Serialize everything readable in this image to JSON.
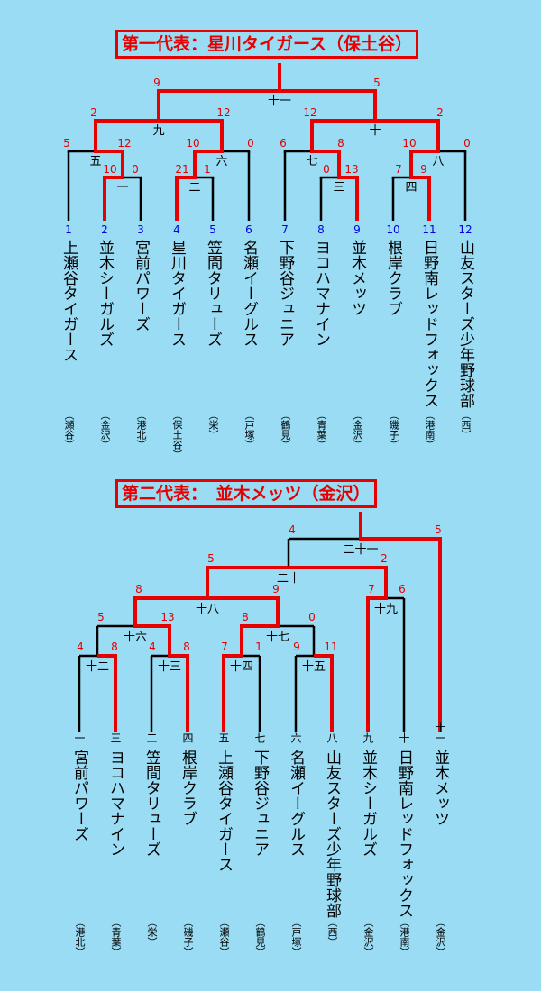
{
  "bracket1": {
    "title": "第一代表：星川タイガース（保土谷）",
    "teams": [
      {
        "seed": "1",
        "name": "上瀬谷タイガース",
        "area": "（瀬谷）"
      },
      {
        "seed": "2",
        "name": "並木シーガルズ",
        "area": "（金沢）"
      },
      {
        "seed": "3",
        "name": "宮前パワーズ",
        "area": "（港北）"
      },
      {
        "seed": "4",
        "name": "星川タイガース",
        "area": "（保土谷）"
      },
      {
        "seed": "5",
        "name": "笠間タリューズ",
        "area": "（栄）"
      },
      {
        "seed": "6",
        "name": "名瀬イーグルス",
        "area": "（戸塚）"
      },
      {
        "seed": "7",
        "name": "下野谷ジュニア",
        "area": "（鶴見）"
      },
      {
        "seed": "8",
        "name": "ヨコハマナイン",
        "area": "（青葉）"
      },
      {
        "seed": "9",
        "name": "並木メッツ",
        "area": "（金沢）"
      },
      {
        "seed": "10",
        "name": "根岸クラブ",
        "area": "（磯子）"
      },
      {
        "seed": "11",
        "name": "日野南レッドフォックス",
        "area": "（港南）"
      },
      {
        "seed": "12",
        "name": "山友スターズ少年野球部",
        "area": "（西）"
      }
    ],
    "matches": [
      {
        "id": "一",
        "scores": [
          "10",
          "0"
        ]
      },
      {
        "id": "二",
        "scores": [
          "21",
          "1"
        ]
      },
      {
        "id": "三",
        "scores": [
          "0",
          "13"
        ]
      },
      {
        "id": "四",
        "scores": [
          "7",
          "9"
        ]
      },
      {
        "id": "五",
        "scores": [
          "5",
          "12"
        ]
      },
      {
        "id": "六",
        "scores": [
          "10",
          "0"
        ]
      },
      {
        "id": "七",
        "scores": [
          "6",
          "8"
        ]
      },
      {
        "id": "八",
        "scores": [
          "10",
          "0"
        ]
      },
      {
        "id": "九",
        "scores": [
          "2",
          "12"
        ]
      },
      {
        "id": "十",
        "scores": [
          "12",
          "2"
        ]
      },
      {
        "id": "十一",
        "scores": [
          "9",
          "5"
        ]
      }
    ]
  },
  "bracket2": {
    "title": "第二代表：　並木メッツ（金沢）",
    "teams": [
      {
        "seed": "一",
        "name": "宮前パワーズ",
        "area": "（港北）"
      },
      {
        "seed": "三",
        "name": "ヨコハマナイン",
        "area": "（青葉）"
      },
      {
        "seed": "二",
        "name": "笠間タリューズ",
        "area": "（栄）"
      },
      {
        "seed": "四",
        "name": "根岸クラブ",
        "area": "（磯子）"
      },
      {
        "seed": "五",
        "name": "上瀬谷タイガース",
        "area": "（瀬谷）"
      },
      {
        "seed": "七",
        "name": "下野谷ジュニア",
        "area": "（鶴見）"
      },
      {
        "seed": "六",
        "name": "名瀬イーグルス",
        "area": "（戸塚）"
      },
      {
        "seed": "八",
        "name": "山友スターズ少年野球部",
        "area": "（西）"
      },
      {
        "seed": "九",
        "name": "並木シーガルズ",
        "area": "（金沢）"
      },
      {
        "seed": "十",
        "name": "日野南レッドフォックス",
        "area": "（港南）"
      },
      {
        "seed": "十一",
        "name": "並木メッツ",
        "area": "（金沢）"
      }
    ],
    "matches": [
      {
        "id": "十二",
        "scores": [
          "4",
          "8"
        ]
      },
      {
        "id": "十三",
        "scores": [
          "4",
          "8"
        ]
      },
      {
        "id": "十四",
        "scores": [
          "7",
          "1"
        ]
      },
      {
        "id": "十五",
        "scores": [
          "9",
          "11"
        ]
      },
      {
        "id": "十六",
        "scores": [
          "5",
          "13"
        ]
      },
      {
        "id": "十七",
        "scores": [
          "8",
          "0"
        ]
      },
      {
        "id": "十八",
        "scores": [
          "8",
          "9"
        ]
      },
      {
        "id": "十九",
        "scores": [
          "7",
          "6"
        ]
      },
      {
        "id": "二十",
        "scores": [
          "5",
          "2"
        ]
      },
      {
        "id": "二十一",
        "scores": [
          "4",
          "5"
        ]
      }
    ]
  },
  "colors": {
    "background": "#99dcf4",
    "winner_line": "#e60000",
    "loser_line": "#000000",
    "seed_number": "#0000e0",
    "score": "#e60000"
  }
}
